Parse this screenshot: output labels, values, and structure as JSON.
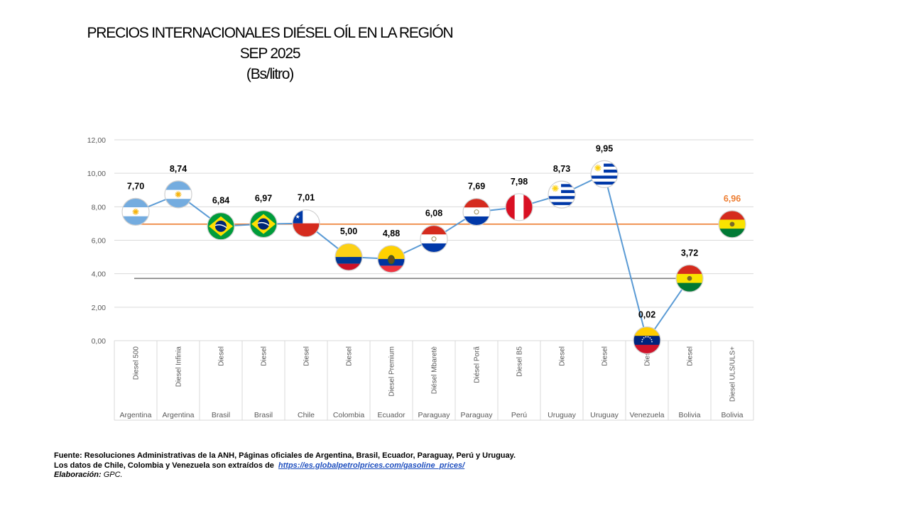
{
  "title": {
    "line1": "PRECIOS INTERNACIONALES DIÉSEL OÍL EN LA REGIÓN",
    "line2": "SEP 2025",
    "line3": "(Bs/litro)"
  },
  "chart_data": {
    "type": "line",
    "ylim": [
      0,
      12
    ],
    "yticks": [
      "0,00",
      "2,00",
      "4,00",
      "6,00",
      "8,00",
      "10,00",
      "12,00"
    ],
    "ytick_values": [
      0,
      2,
      4,
      6,
      8,
      10,
      12
    ],
    "grid": true,
    "points": [
      {
        "product": "Diesel 500",
        "country": "Argentina",
        "value": 7.7,
        "label": "7,70",
        "flag": "argentina-flag-icon"
      },
      {
        "product": "Diesel Infinia",
        "country": "Argentina",
        "value": 8.74,
        "label": "8,74",
        "flag": "argentina-flag-icon"
      },
      {
        "product": "Diesel",
        "country": "Brasil",
        "value": 6.84,
        "label": "6,84",
        "flag": "brazil-flag-icon"
      },
      {
        "product": "Diesel",
        "country": "Brasil",
        "value": 6.97,
        "label": "6,97",
        "flag": "brazil-flag-icon"
      },
      {
        "product": "Diesel",
        "country": "Chile",
        "value": 7.01,
        "label": "7,01",
        "flag": "chile-flag-icon"
      },
      {
        "product": "Diesel",
        "country": "Colombia",
        "value": 5.0,
        "label": "5,00",
        "flag": "colombia-flag-icon"
      },
      {
        "product": "Diesel Premium",
        "country": "Ecuador",
        "value": 4.88,
        "label": "4,88",
        "flag": "ecuador-flag-icon"
      },
      {
        "product": "Diésel Mbaretè",
        "country": "Paraguay",
        "value": 6.08,
        "label": "6,08",
        "flag": "paraguay-flag-icon"
      },
      {
        "product": "Diésel Porã",
        "country": "Paraguay",
        "value": 7.69,
        "label": "7,69",
        "flag": "paraguay-flag-icon"
      },
      {
        "product": "Diesel B5",
        "country": "Perú",
        "value": 7.98,
        "label": "7,98",
        "flag": "peru-flag-icon"
      },
      {
        "product": "Diesel",
        "country": "Uruguay",
        "value": 8.73,
        "label": "8,73",
        "flag": "uruguay-flag-icon"
      },
      {
        "product": "Diesel",
        "country": "Uruguay",
        "value": 9.95,
        "label": "9,95",
        "flag": "uruguay-flag-icon"
      },
      {
        "product": "Diesel",
        "country": "Venezuela",
        "value": 0.02,
        "label": "0,02",
        "flag": "venezuela-flag-icon"
      },
      {
        "product": "Diesel",
        "country": "Bolivia",
        "value": 3.72,
        "label": "3,72",
        "flag": "bolivia-flag-icon"
      },
      {
        "product": "Diesel ULS/ULS+",
        "country": "Bolivia",
        "value": 6.96,
        "label": "6,96",
        "flag": "bolivia-flag-icon",
        "highlight": true
      }
    ],
    "reference_lines": [
      {
        "value": 6.96,
        "color": "#ed7d31"
      },
      {
        "value": 3.72,
        "color": "#7f7f7f"
      }
    ],
    "colors": {
      "series_line": "#5b9bd5",
      "highlight_label": "#ed7d31",
      "grid": "#d9d9d9",
      "axis_text": "#595959"
    }
  },
  "footer": {
    "source_line": "Fuente: Resoluciones Administrativas de la ANH, Páginas oficiales de Argentina, Brasil, Ecuador, Paraguay, Perú y Uruguay.",
    "data_line": "Los datos de Chile, Colombia y Venezuela son extraídos de",
    "link": "https://es.globalpetrolprices.com/gasoline_prices/",
    "credit_label": "Elaboración:",
    "credit_value": "GPC."
  }
}
